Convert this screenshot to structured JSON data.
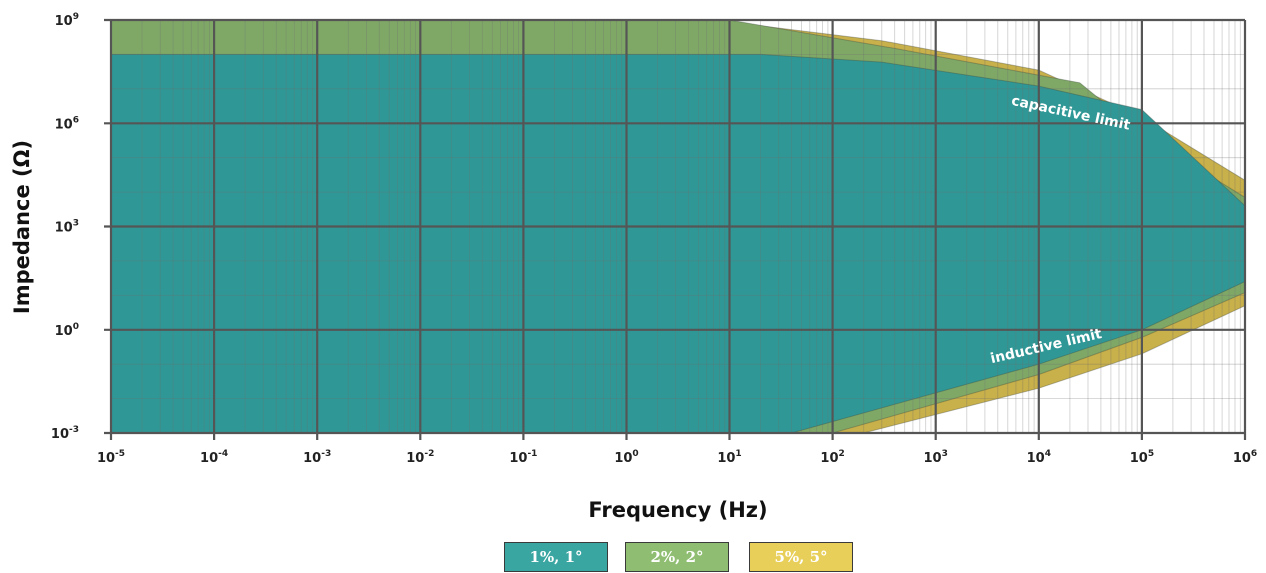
{
  "chart_data": {
    "type": "area",
    "title": "",
    "xlabel": "Frequency (Hz)",
    "ylabel": "Impedance (Ω)",
    "x_scale": "log",
    "y_scale": "log",
    "xlim": [
      1e-05,
      1000000.0
    ],
    "ylim": [
      0.001,
      1000000000.0
    ],
    "grid": true,
    "x_ticks": [
      {
        "base": "10",
        "exp": "-5"
      },
      {
        "base": "10",
        "exp": "-4"
      },
      {
        "base": "10",
        "exp": "-3"
      },
      {
        "base": "10",
        "exp": "-2"
      },
      {
        "base": "10",
        "exp": "-1"
      },
      {
        "base": "10",
        "exp": "0"
      },
      {
        "base": "10",
        "exp": "1"
      },
      {
        "base": "10",
        "exp": "2"
      },
      {
        "base": "10",
        "exp": "3"
      },
      {
        "base": "10",
        "exp": "4"
      },
      {
        "base": "10",
        "exp": "5"
      },
      {
        "base": "10",
        "exp": "6"
      }
    ],
    "y_ticks": [
      {
        "base": "10",
        "exp": "-3"
      },
      {
        "base": "10",
        "exp": "0"
      },
      {
        "base": "10",
        "exp": "3"
      },
      {
        "base": "10",
        "exp": "6"
      },
      {
        "base": "10",
        "exp": "9"
      }
    ],
    "series": [
      {
        "name": "5%, 5°",
        "color": "#c8b04a",
        "upper": [
          [
            1e-05,
            1000000000.0
          ],
          [
            7,
            1000000000.0
          ],
          [
            300,
            250000000.0
          ],
          [
            10000.0,
            35000000.0
          ],
          [
            100000.0,
            1500000.0
          ],
          [
            1000000.0,
            22000.0
          ]
        ],
        "lower": [
          [
            1e-05,
            0.001
          ],
          [
            200,
            0.001
          ],
          [
            10000.0,
            0.02
          ],
          [
            100000.0,
            0.2
          ],
          [
            1000000.0,
            5
          ]
        ]
      },
      {
        "name": "2%, 2°",
        "color": "#7fa867",
        "upper": [
          [
            1e-05,
            1000000000.0
          ],
          [
            10,
            1000000000.0
          ],
          [
            400,
            150000000.0
          ],
          [
            25000.0,
            15000000.0
          ],
          [
            100000.0,
            500000.0
          ],
          [
            1000000.0,
            7000.0
          ]
        ],
        "lower": [
          [
            1e-05,
            0.001
          ],
          [
            100,
            0.001
          ],
          [
            10000.0,
            0.05
          ],
          [
            100000.0,
            0.6
          ],
          [
            1000000.0,
            12
          ]
        ]
      },
      {
        "name": "1%, 1°",
        "color": "#2f9896",
        "upper": [
          [
            1e-05,
            100000000.0
          ],
          [
            20,
            100000000.0
          ],
          [
            300,
            60000000.0
          ],
          [
            10000.0,
            12000000.0
          ],
          [
            100000.0,
            2500000.0
          ],
          [
            1000000.0,
            4000.0
          ]
        ],
        "lower": [
          [
            1e-05,
            0.001
          ],
          [
            40,
            0.001
          ],
          [
            10000.0,
            0.1
          ],
          [
            100000.0,
            1
          ],
          [
            1000000.0,
            25
          ]
        ]
      }
    ],
    "annotations": [
      {
        "text": "capacitive limit",
        "x": 20000.0,
        "y": 1500000.0
      },
      {
        "text": "inductive limit",
        "x": 12000.0,
        "y": 0.25
      }
    ]
  },
  "legend": [
    {
      "label": "1%, 1°",
      "color": "#3aa6a2"
    },
    {
      "label": "2%, 2°",
      "color": "#8fbe72"
    },
    {
      "label": "5%, 5°",
      "color": "#e8cf5a"
    }
  ]
}
